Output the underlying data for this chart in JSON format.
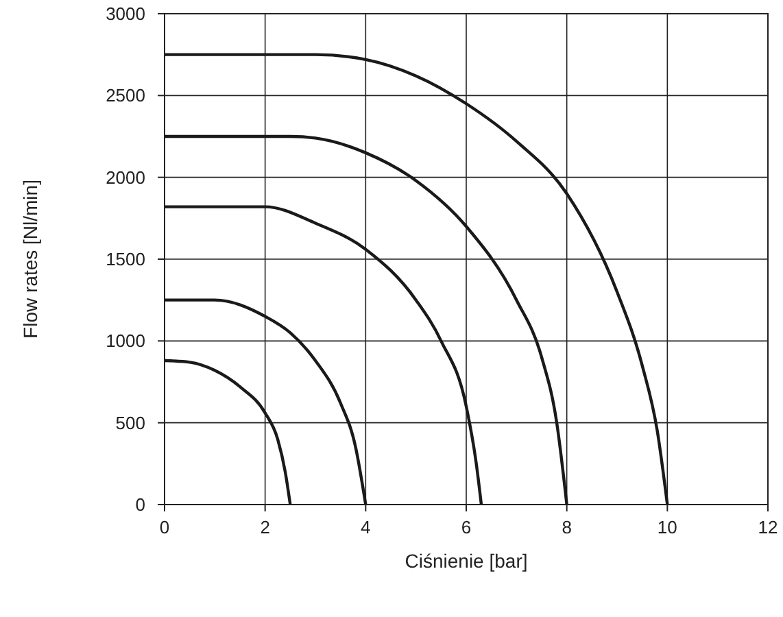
{
  "chart_data": {
    "type": "line",
    "xlabel": "Ciśnienie [bar]",
    "ylabel": "Flow rates [Nl/min]",
    "xlim": [
      0,
      12
    ],
    "xticks": [
      0,
      2,
      4,
      6,
      8,
      10,
      12
    ],
    "ylim": [
      0,
      3000
    ],
    "yticks": [
      0,
      500,
      1000,
      1500,
      2000,
      2500,
      3000
    ],
    "grid": true,
    "marker": "none",
    "line_style": "solid",
    "series": [
      {
        "color": "#1a1a1a",
        "x": [
          0,
          0.5,
          1,
          1.5,
          2,
          2.25,
          2.4,
          2.5
        ],
        "values": [
          880,
          870,
          820,
          720,
          560,
          400,
          200,
          0
        ]
      },
      {
        "color": "#1a1a1a",
        "x": [
          0,
          1,
          2,
          2.5,
          3,
          3.5,
          3.8,
          4
        ],
        "values": [
          1250,
          1250,
          1150,
          1050,
          880,
          620,
          350,
          0
        ]
      },
      {
        "color": "#1a1a1a",
        "x": [
          0,
          2,
          3,
          4,
          5,
          5.5,
          6,
          6.2,
          6.3
        ],
        "values": [
          1820,
          1820,
          1720,
          1560,
          1250,
          1000,
          600,
          250,
          0
        ]
      },
      {
        "color": "#1a1a1a",
        "x": [
          0,
          2.5,
          3,
          4,
          5,
          6,
          7,
          7.5,
          7.8,
          8
        ],
        "values": [
          2250,
          2250,
          2240,
          2150,
          1980,
          1700,
          1250,
          900,
          500,
          0
        ]
      },
      {
        "color": "#1a1a1a",
        "x": [
          0,
          3,
          4,
          5,
          6,
          7,
          8,
          9,
          9.5,
          9.8,
          10
        ],
        "values": [
          2750,
          2750,
          2720,
          2620,
          2450,
          2220,
          1900,
          1300,
          850,
          450,
          0
        ]
      }
    ]
  }
}
